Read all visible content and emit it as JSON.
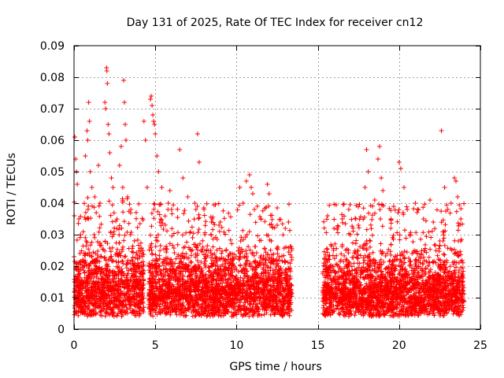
{
  "chart_data": {
    "type": "scatter",
    "title": "Day 131 of 2025, Rate Of TEC Index for receiver cn12",
    "xlabel": "GPS time / hours",
    "ylabel": "ROTI / TECUs",
    "xlim": [
      0,
      25
    ],
    "ylim": [
      0,
      0.09
    ],
    "xticks": [
      0,
      5,
      10,
      15,
      20,
      25
    ],
    "xtick_labels": [
      "0",
      "5",
      "10",
      "15",
      "20",
      "25"
    ],
    "yticks": [
      0,
      0.01,
      0.02,
      0.03,
      0.04,
      0.05,
      0.06,
      0.07,
      0.08,
      0.09
    ],
    "ytick_labels": [
      "0",
      "0.01",
      "0.02",
      "0.03",
      "0.04",
      "0.05",
      "0.06",
      "0.07",
      "0.08",
      "0.09"
    ],
    "grid": true,
    "marker": "+",
    "color": "#ff0000",
    "series": [
      {
        "name": "ROTI",
        "points": [
          [
            0.05,
            0.061
          ],
          [
            0.1,
            0.054
          ],
          [
            0.15,
            0.05
          ],
          [
            0.2,
            0.046
          ],
          [
            0.3,
            0.035
          ],
          [
            0.4,
            0.03
          ],
          [
            0.7,
            0.055
          ],
          [
            0.8,
            0.063
          ],
          [
            0.85,
            0.06
          ],
          [
            0.9,
            0.072
          ],
          [
            0.95,
            0.066
          ],
          [
            1.0,
            0.05
          ],
          [
            1.1,
            0.045
          ],
          [
            1.5,
            0.052
          ],
          [
            1.6,
            0.04
          ],
          [
            1.9,
            0.072
          ],
          [
            1.95,
            0.07
          ],
          [
            2.0,
            0.083
          ],
          [
            2.02,
            0.082
          ],
          [
            2.05,
            0.078
          ],
          [
            2.1,
            0.065
          ],
          [
            2.15,
            0.062
          ],
          [
            2.2,
            0.056
          ],
          [
            2.3,
            0.048
          ],
          [
            2.4,
            0.045
          ],
          [
            2.8,
            0.052
          ],
          [
            2.9,
            0.058
          ],
          [
            3.0,
            0.045
          ],
          [
            3.05,
            0.079
          ],
          [
            3.1,
            0.072
          ],
          [
            3.15,
            0.065
          ],
          [
            3.2,
            0.06
          ],
          [
            3.3,
            0.042
          ],
          [
            3.5,
            0.038
          ],
          [
            4.3,
            0.066
          ],
          [
            4.4,
            0.06
          ],
          [
            4.5,
            0.045
          ],
          [
            4.7,
            0.073
          ],
          [
            4.75,
            0.074
          ],
          [
            4.8,
            0.071
          ],
          [
            4.85,
            0.068
          ],
          [
            4.9,
            0.066
          ],
          [
            4.95,
            0.065
          ],
          [
            5.0,
            0.062
          ],
          [
            5.1,
            0.055
          ],
          [
            5.2,
            0.05
          ],
          [
            5.4,
            0.045
          ],
          [
            5.8,
            0.04
          ],
          [
            5.9,
            0.044
          ],
          [
            6.0,
            0.038
          ],
          [
            6.5,
            0.057
          ],
          [
            6.7,
            0.048
          ],
          [
            7.0,
            0.042
          ],
          [
            7.5,
            0.038
          ],
          [
            7.6,
            0.062
          ],
          [
            7.7,
            0.053
          ],
          [
            8.0,
            0.038
          ],
          [
            8.5,
            0.035
          ],
          [
            9.0,
            0.034
          ],
          [
            10.2,
            0.045
          ],
          [
            10.4,
            0.04
          ],
          [
            10.6,
            0.047
          ],
          [
            10.8,
            0.049
          ],
          [
            10.9,
            0.045
          ],
          [
            11.0,
            0.043
          ],
          [
            11.1,
            0.038
          ],
          [
            11.5,
            0.035
          ],
          [
            11.9,
            0.046
          ],
          [
            12.0,
            0.043
          ],
          [
            12.5,
            0.033
          ],
          [
            13.0,
            0.032
          ],
          [
            13.2,
            0.034
          ],
          [
            15.6,
            0.036
          ],
          [
            16.0,
            0.032
          ],
          [
            16.5,
            0.035
          ],
          [
            17.0,
            0.03
          ],
          [
            17.5,
            0.033
          ],
          [
            17.9,
            0.045
          ],
          [
            18.0,
            0.057
          ],
          [
            18.1,
            0.05
          ],
          [
            18.5,
            0.041
          ],
          [
            18.7,
            0.054
          ],
          [
            18.8,
            0.058
          ],
          [
            18.9,
            0.048
          ],
          [
            19.0,
            0.044
          ],
          [
            19.5,
            0.035
          ],
          [
            20.0,
            0.053
          ],
          [
            20.1,
            0.051
          ],
          [
            20.3,
            0.045
          ],
          [
            20.5,
            0.038
          ],
          [
            21.0,
            0.04
          ],
          [
            21.5,
            0.035
          ],
          [
            21.9,
            0.041
          ],
          [
            22.6,
            0.063
          ],
          [
            22.8,
            0.045
          ],
          [
            23.0,
            0.038
          ],
          [
            23.2,
            0.04
          ],
          [
            23.4,
            0.048
          ],
          [
            23.5,
            0.047
          ],
          [
            23.6,
            0.042
          ],
          [
            23.8,
            0.035
          ]
        ]
      }
    ],
    "density_band": {
      "description": "dense cloud of ROTI samples",
      "segments": [
        {
          "start_hour": 0.0,
          "end_hour": 4.3,
          "typical_min": 0.004,
          "typical_max": 0.03
        },
        {
          "start_hour": 4.6,
          "end_hour": 13.4,
          "typical_min": 0.004,
          "typical_max": 0.028
        },
        {
          "start_hour": 15.3,
          "end_hour": 24.0,
          "typical_min": 0.004,
          "typical_max": 0.028
        }
      ]
    }
  }
}
